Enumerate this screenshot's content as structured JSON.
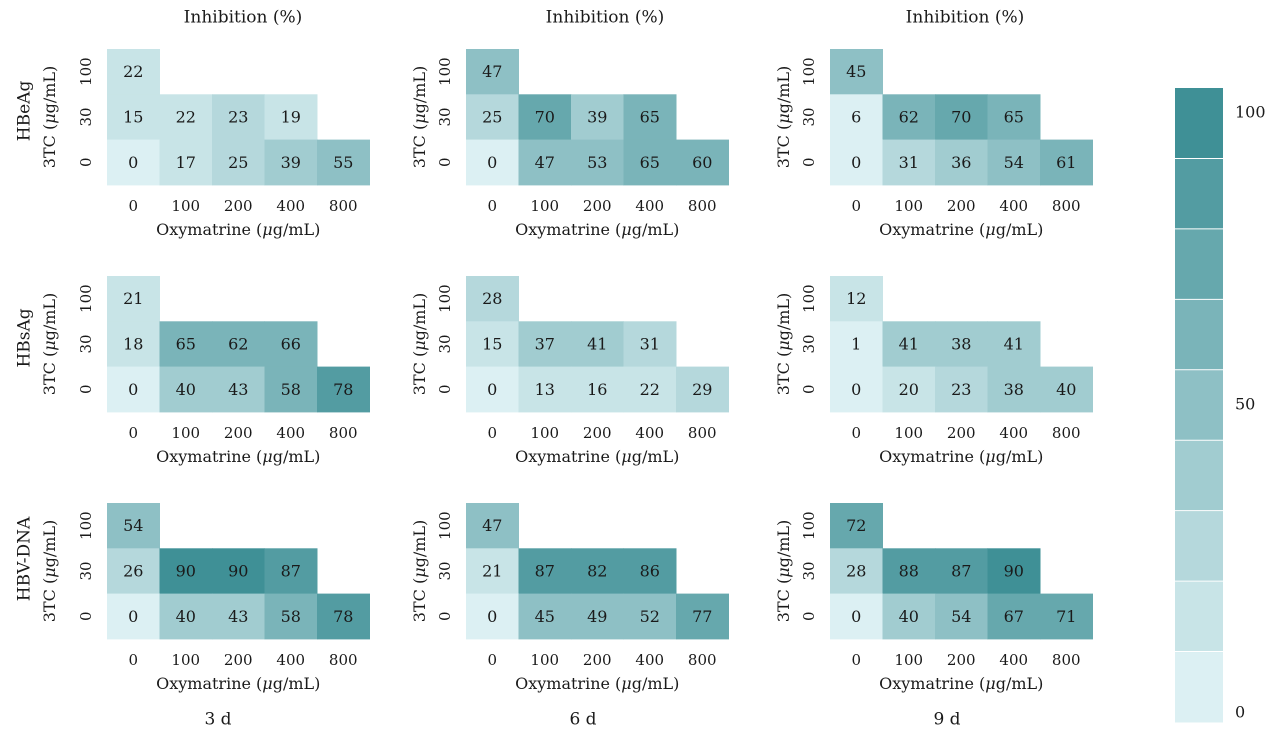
{
  "chart_data": {
    "type": "heatmap",
    "column_titles": [
      "Inhibition (%)",
      "Inhibition (%)",
      "Inhibition (%)"
    ],
    "day_labels": [
      "3 d",
      "6 d",
      "9 d"
    ],
    "row_labels": [
      "HBeAg",
      "HBsAg",
      "HBV-DNA"
    ],
    "xlabel_prefix": "Oxymatrine (",
    "xlabel_suffix": "g/mL)",
    "ylabel_prefix": "3TC (",
    "ylabel_suffix": "g/mL)",
    "mu": "μ",
    "x_categories": [
      "0",
      "100",
      "200",
      "400",
      "800"
    ],
    "y_categories": [
      "100",
      "30",
      "0"
    ],
    "colorbar": {
      "ticks": [
        "100",
        "50",
        "0"
      ],
      "range": [
        0,
        100
      ],
      "bins": 9,
      "color_low": "#dcf0f3",
      "color_high": "#3f9096"
    },
    "panels": [
      {
        "row": "HBeAg",
        "day": "3 d",
        "values": [
          [
            22
          ],
          [
            15,
            22,
            23,
            19
          ],
          [
            0,
            17,
            25,
            39,
            55
          ]
        ]
      },
      {
        "row": "HBeAg",
        "day": "6 d",
        "values": [
          [
            47
          ],
          [
            25,
            70,
            39,
            65
          ],
          [
            0,
            47,
            53,
            65,
            60
          ]
        ]
      },
      {
        "row": "HBeAg",
        "day": "9 d",
        "values": [
          [
            45
          ],
          [
            6,
            62,
            70,
            65
          ],
          [
            0,
            31,
            36,
            54,
            61
          ]
        ]
      },
      {
        "row": "HBsAg",
        "day": "3 d",
        "values": [
          [
            21
          ],
          [
            18,
            65,
            62,
            66
          ],
          [
            0,
            40,
            43,
            58,
            78
          ]
        ]
      },
      {
        "row": "HBsAg",
        "day": "6 d",
        "values": [
          [
            28
          ],
          [
            15,
            37,
            41,
            31
          ],
          [
            0,
            13,
            16,
            22,
            29
          ]
        ]
      },
      {
        "row": "HBsAg",
        "day": "9 d",
        "values": [
          [
            12
          ],
          [
            1,
            41,
            38,
            41
          ],
          [
            0,
            20,
            23,
            38,
            40
          ]
        ]
      },
      {
        "row": "HBV-DNA",
        "day": "3 d",
        "values": [
          [
            54
          ],
          [
            26,
            90,
            90,
            87
          ],
          [
            0,
            40,
            43,
            58,
            78
          ]
        ]
      },
      {
        "row": "HBV-DNA",
        "day": "6 d",
        "values": [
          [
            47
          ],
          [
            21,
            87,
            82,
            86
          ],
          [
            0,
            45,
            49,
            52,
            77
          ]
        ]
      },
      {
        "row": "HBV-DNA",
        "day": "9 d",
        "values": [
          [
            72
          ],
          [
            28,
            88,
            87,
            90
          ],
          [
            0,
            40,
            54,
            67,
            71
          ]
        ]
      }
    ]
  }
}
